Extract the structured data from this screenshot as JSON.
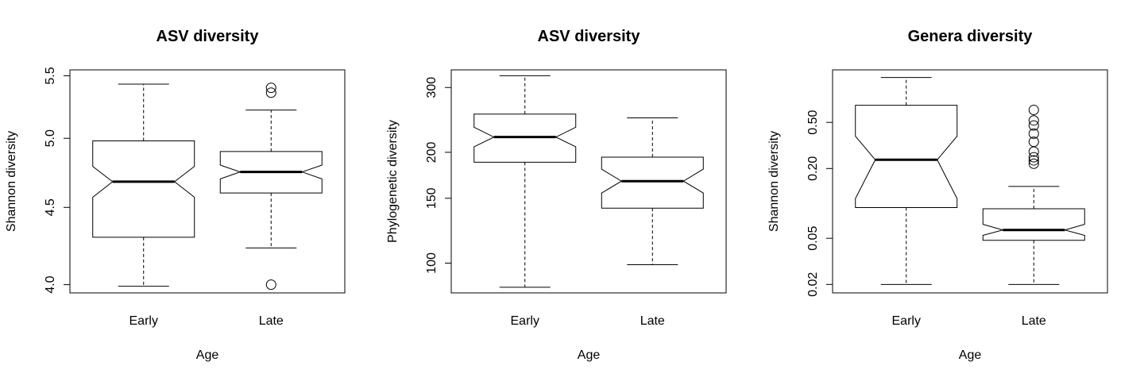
{
  "chart_data": [
    {
      "type": "box",
      "title": "ASV diversity",
      "xlabel": "Age",
      "ylabel": "Shannon diversity",
      "y_scale": "log",
      "ylim": [
        3.95,
        5.55
      ],
      "y_ticks": [
        4.0,
        4.5,
        5.0,
        5.5
      ],
      "y_tick_labels": [
        "4.0",
        "4.5",
        "5.0",
        "5.5"
      ],
      "notched": true,
      "categories": [
        "Early",
        "Late"
      ],
      "boxes": [
        {
          "category": "Early",
          "whisker_low": 3.99,
          "q1": 4.3,
          "median": 4.68,
          "q3": 4.98,
          "whisker_high": 5.43,
          "notch_low": 4.57,
          "notch_high": 4.79,
          "outliers": []
        },
        {
          "category": "Late",
          "whisker_low": 4.23,
          "q1": 4.6,
          "median": 4.75,
          "q3": 4.9,
          "whisker_high": 5.22,
          "notch_low": 4.7,
          "notch_high": 4.8,
          "outliers": [
            4.0,
            5.36,
            5.4
          ]
        }
      ]
    },
    {
      "type": "box",
      "title": "ASV diversity",
      "xlabel": "Age",
      "ylabel": "Phylogenetic diversity",
      "y_scale": "log",
      "ylim": [
        83,
        335
      ],
      "y_ticks": [
        100,
        150,
        200,
        300
      ],
      "y_tick_labels": [
        "100",
        "150",
        "200",
        "300"
      ],
      "notched": true,
      "categories": [
        "Early",
        "Late"
      ],
      "boxes": [
        {
          "category": "Early",
          "whisker_low": 86,
          "q1": 188,
          "median": 220,
          "q3": 254,
          "whisker_high": 323,
          "notch_low": 207,
          "notch_high": 234,
          "outliers": []
        },
        {
          "category": "Late",
          "whisker_low": 99,
          "q1": 141,
          "median": 167,
          "q3": 194,
          "whisker_high": 248,
          "notch_low": 155,
          "notch_high": 180,
          "outliers": []
        }
      ]
    },
    {
      "type": "box",
      "title": "Genera diversity",
      "xlabel": "Age",
      "ylabel": "Shannon diversity",
      "y_scale": "log",
      "ylim": [
        0.0169,
        1.42
      ],
      "y_ticks": [
        0.02,
        0.05,
        0.2,
        0.5
      ],
      "y_tick_labels": [
        "0.02",
        "0.05",
        "0.20",
        "0.50"
      ],
      "notched": true,
      "categories": [
        "Early",
        "Late"
      ],
      "boxes": [
        {
          "category": "Early",
          "whisker_low": 0.02,
          "q1": 0.092,
          "median": 0.238,
          "q3": 0.703,
          "whisker_high": 1.22,
          "notch_low": 0.11,
          "notch_high": 0.38,
          "outliers": []
        },
        {
          "category": "Late",
          "whisker_low": 0.02,
          "q1": 0.048,
          "median": 0.059,
          "q3": 0.09,
          "whisker_high": 0.14,
          "notch_low": 0.053,
          "notch_high": 0.066,
          "outliers": [
            0.22,
            0.235,
            0.25,
            0.28,
            0.34,
            0.4,
            0.47,
            0.52,
            0.64
          ]
        }
      ]
    }
  ]
}
